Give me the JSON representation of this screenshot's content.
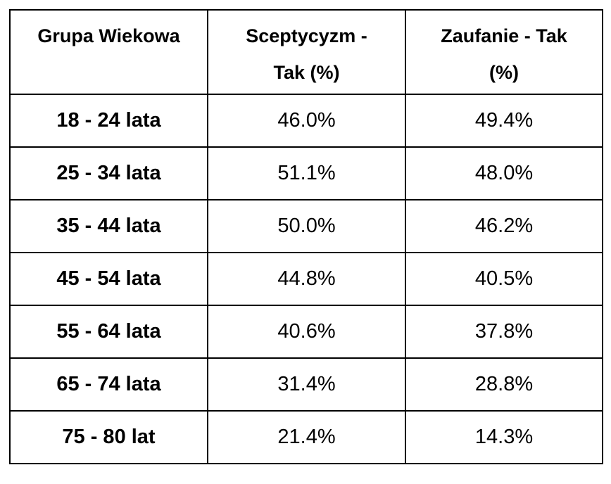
{
  "table": {
    "header": [
      "Grupa Wiekowa",
      "Sceptycyzm - Tak (%)",
      "Zaufanie - Tak (%)"
    ],
    "rows": [
      [
        "18 - 24 lata",
        "46.0%",
        "49.4%"
      ],
      [
        "25 - 34 lata",
        "51.1%",
        "48.0%"
      ],
      [
        "35 - 44 lata",
        "50.0%",
        "46.2%"
      ],
      [
        "45 - 54 lata",
        "44.8%",
        "40.5%"
      ],
      [
        "55 - 64 lata",
        "40.6%",
        "37.8%"
      ],
      [
        "65 - 74 lata",
        "31.4%",
        "28.8%"
      ],
      [
        "75 - 80 lat",
        "21.4%",
        "14.3%"
      ]
    ]
  }
}
